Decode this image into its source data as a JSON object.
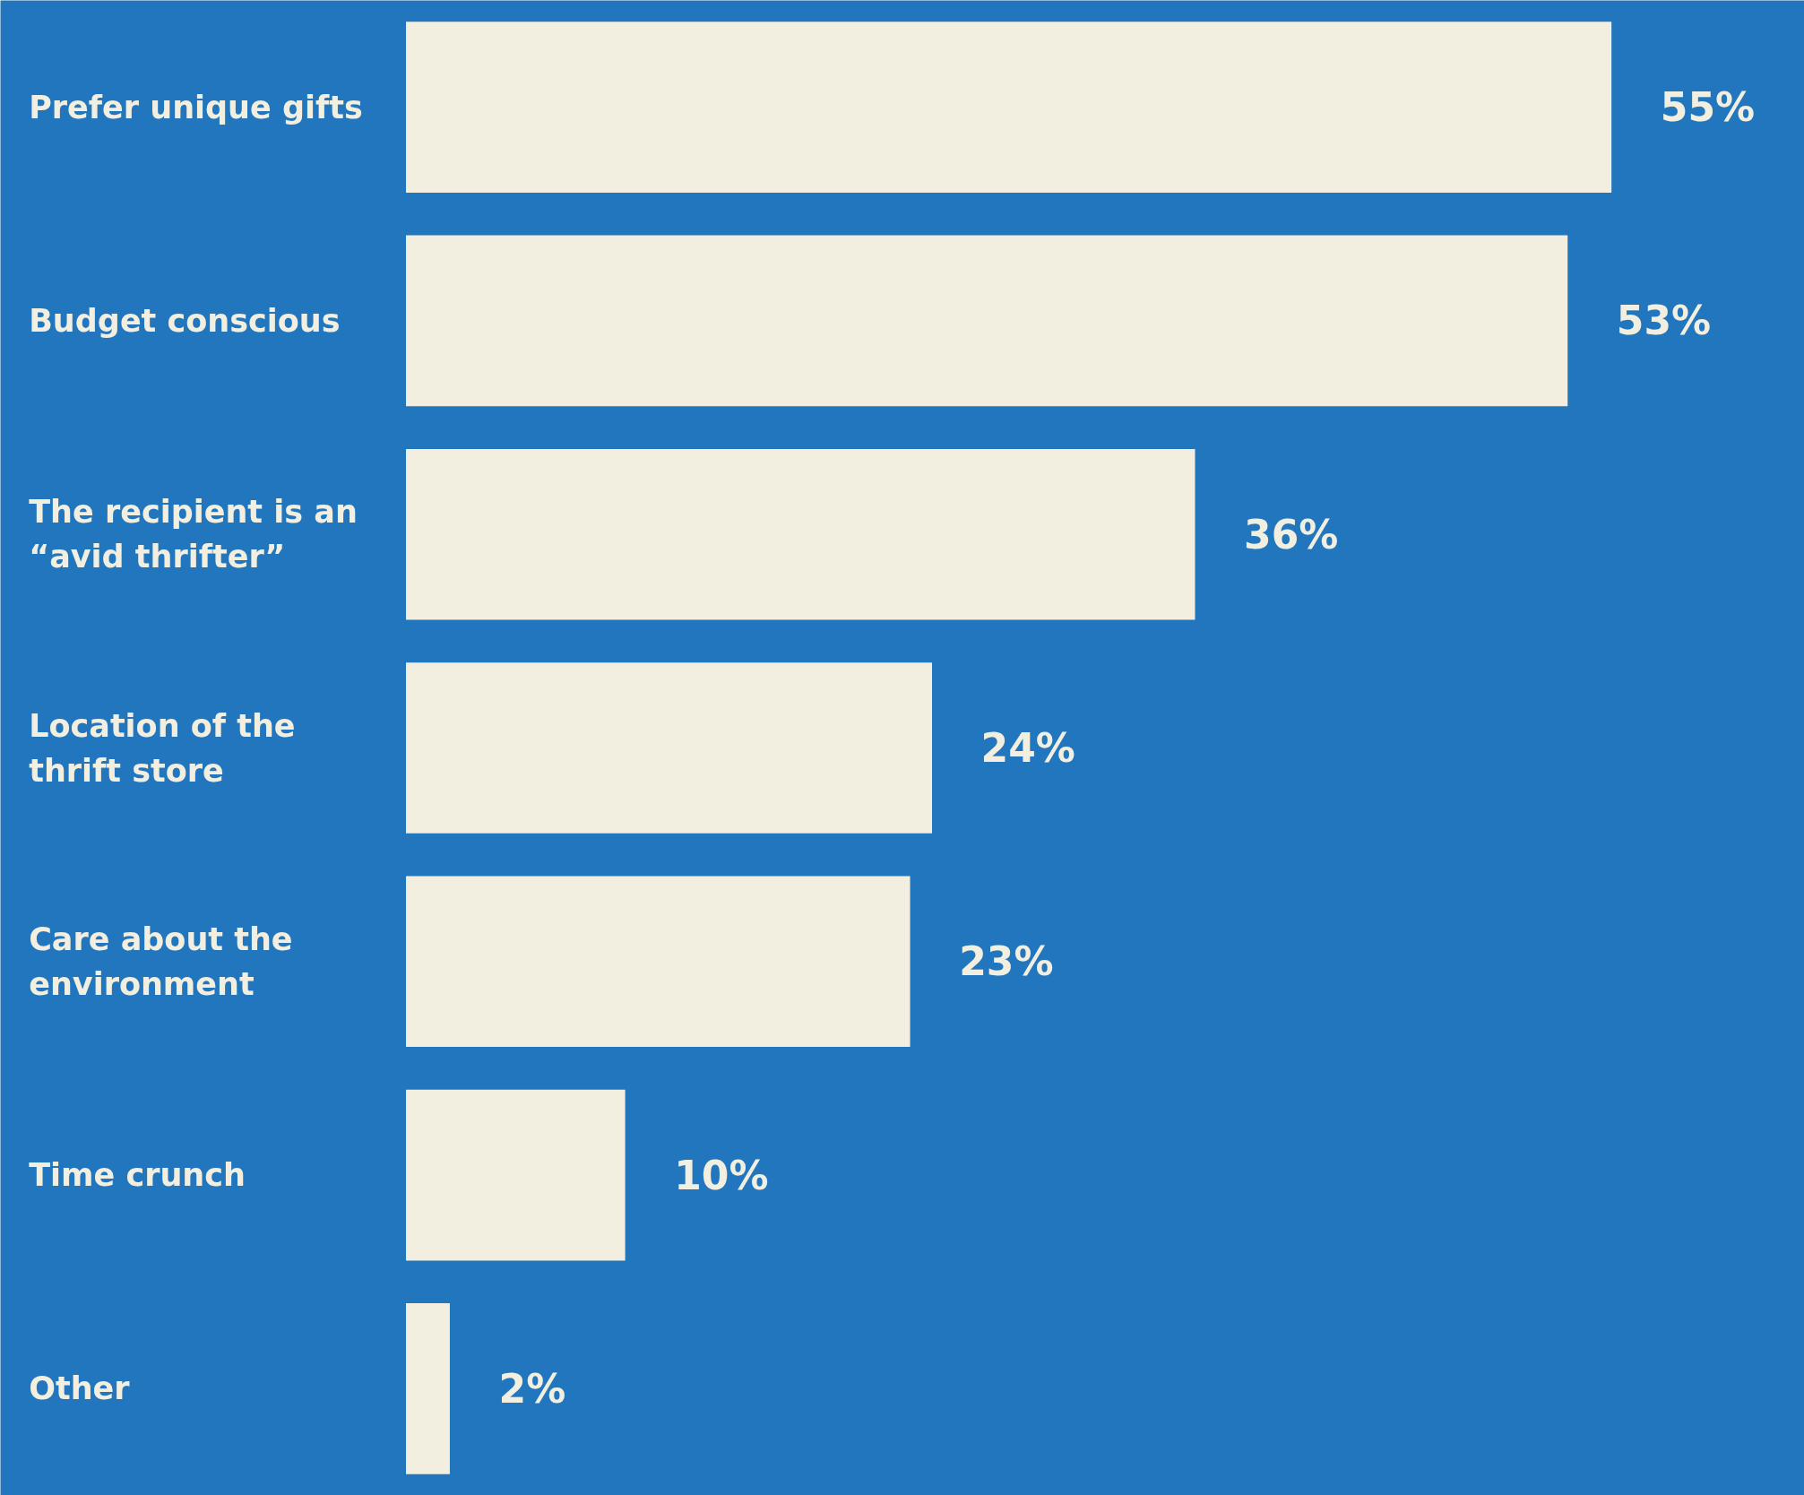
{
  "chart_data": {
    "type": "bar",
    "orientation": "horizontal",
    "categories": [
      "Prefer unique gifts",
      "Budget conscious",
      "The recipient is an “avid thrifter”",
      "Location of the thrift store",
      "Care about the environment",
      "Time crunch",
      "Other"
    ],
    "values": [
      55,
      53,
      36,
      24,
      23,
      10,
      2
    ],
    "value_labels": [
      "55%",
      "53%",
      "36%",
      "24%",
      "23%",
      "10%",
      "2%"
    ],
    "color": "#f2efe1",
    "grid": false
  }
}
